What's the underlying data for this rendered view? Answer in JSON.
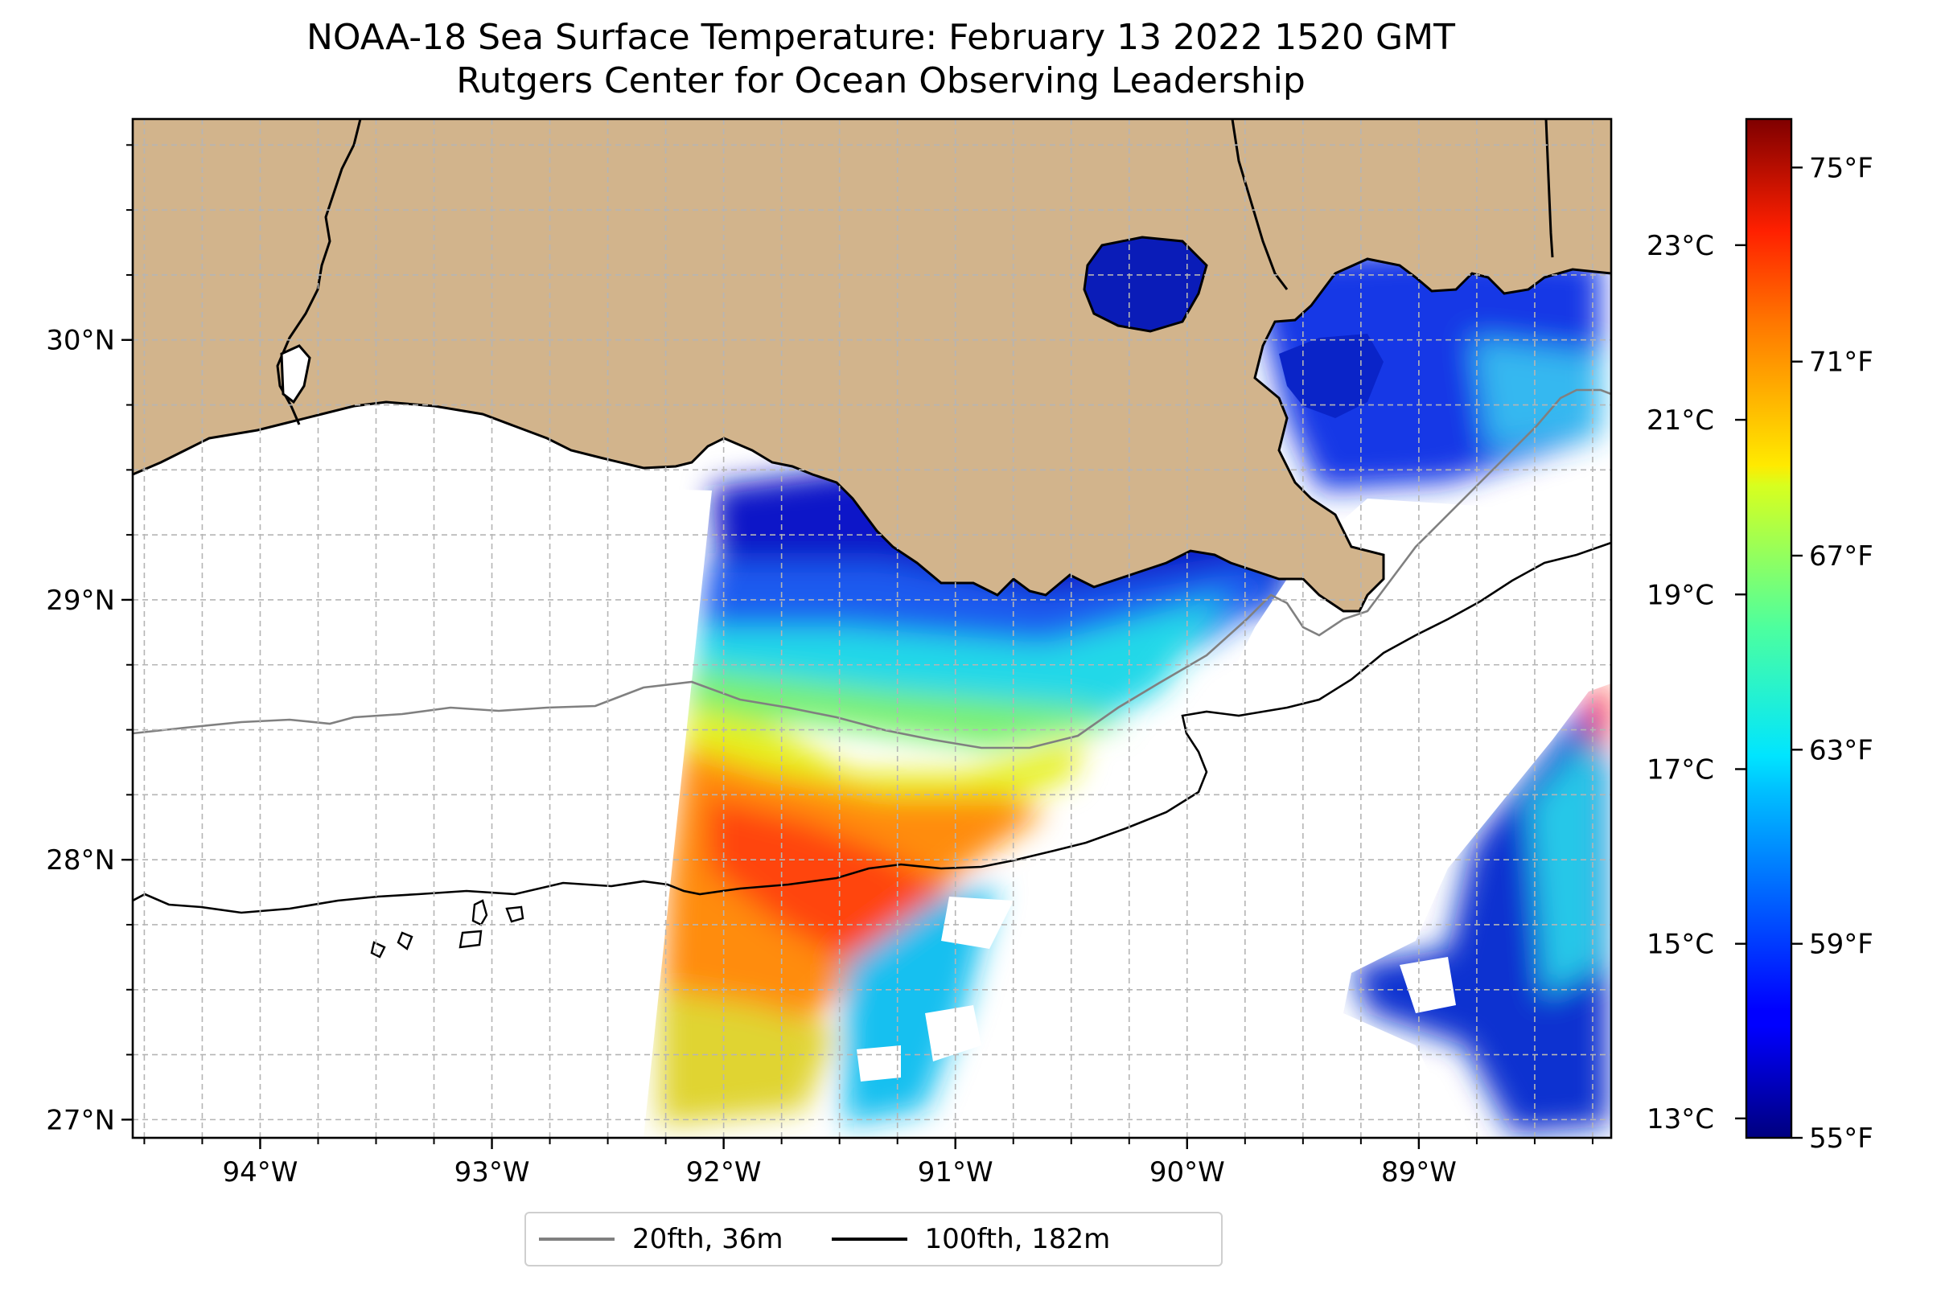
{
  "title": {
    "line1": "NOAA-18 Sea Surface Temperature: February 13 2022 1520 GMT",
    "line2": "Rutgers Center for Ocean Observing Leadership"
  },
  "map": {
    "lon_range": [
      -94.55,
      -88.17
    ],
    "lat_range": [
      26.93,
      30.85
    ],
    "lon_ticks": [
      -94,
      -93,
      -92,
      -91,
      -90,
      -89
    ],
    "lon_tick_labels": [
      "94°W",
      "93°W",
      "92°W",
      "91°W",
      "90°W",
      "89°W"
    ],
    "lat_ticks": [
      27,
      28,
      29,
      30
    ],
    "lat_tick_labels": [
      "27°N",
      "28°N",
      "29°N",
      "30°N"
    ],
    "gridlines": true,
    "colors": {
      "land": "#d2b48c",
      "lakes": "#9db9e4",
      "isobath_20": "#808080",
      "isobath_100": "#000000"
    }
  },
  "colorbar": {
    "colormap": "jet",
    "range_f": [
      55,
      76
    ],
    "fahrenheit_ticks": [
      55,
      59,
      63,
      67,
      71,
      75
    ],
    "fahrenheit_labels": [
      "55°F",
      "59°F",
      "63°F",
      "67°F",
      "71°F",
      "75°F"
    ],
    "celsius_ticks": [
      13,
      15,
      17,
      19,
      21,
      23
    ],
    "celsius_labels": [
      "13°C",
      "15°C",
      "17°C",
      "19°C",
      "21°C",
      "23°C"
    ]
  },
  "legend": {
    "placement": "bottom-center",
    "items": [
      {
        "label": "20fth, 36m",
        "color": "#808080"
      },
      {
        "label": "100fth, 182m",
        "color": "#000000"
      }
    ]
  }
}
